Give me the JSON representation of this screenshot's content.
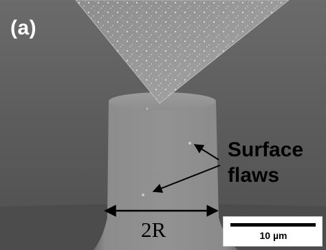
{
  "figure": {
    "panel_label": "(a)",
    "annotation": {
      "line1": "Surface",
      "line2": "flaws"
    },
    "dimension_label": "2R",
    "scale_bar": {
      "text": "10 µm"
    }
  },
  "colors": {
    "background": "#5d5d5d",
    "pillar": "#8a8a8a",
    "indenter": "#9a9a9a",
    "label_light": "#ffffff",
    "label_dark": "#000000"
  }
}
